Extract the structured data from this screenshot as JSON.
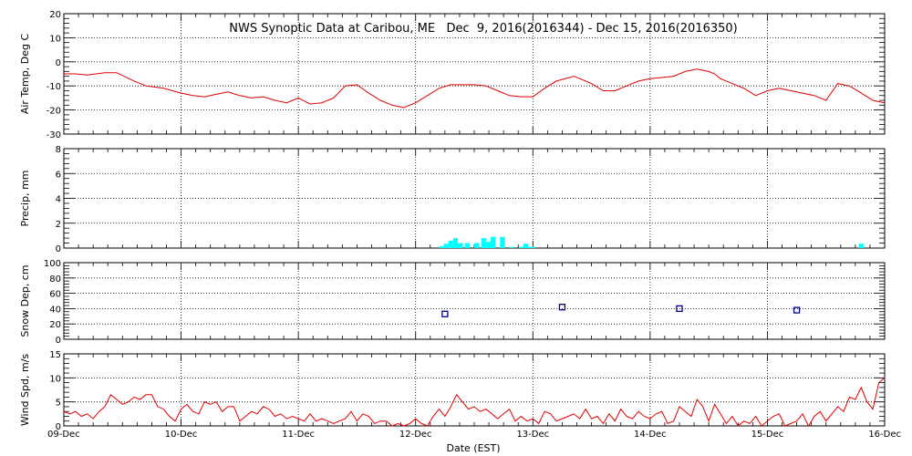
{
  "chart_data": {
    "type": "line",
    "title": "NWS Synoptic Data at Caribou, ME   Dec  9, 2016(2016344) - Dec 15, 2016(2016350)",
    "xlabel": "Date (EST)",
    "x_ticks": [
      "09-Dec",
      "10-Dec",
      "11-Dec",
      "12-Dec",
      "13-Dec",
      "14-Dec",
      "15-Dec",
      "16-Dec"
    ],
    "x_range_days": [
      0,
      7
    ],
    "colors": {
      "temp": "#e00000",
      "precip": "#00ffff",
      "snow": "#000080",
      "wind": "#e00000"
    },
    "panels": [
      {
        "id": "temp",
        "type": "line",
        "ylabel": "Air Temp, Deg C",
        "ylim": [
          -30,
          20
        ],
        "y_ticks": [
          20,
          10,
          0,
          -10,
          -20,
          -30
        ],
        "x": [
          0,
          0.1,
          0.2,
          0.35,
          0.45,
          0.6,
          0.7,
          0.85,
          1.0,
          1.1,
          1.2,
          1.3,
          1.4,
          1.5,
          1.6,
          1.7,
          1.8,
          1.9,
          2.0,
          2.1,
          2.2,
          2.3,
          2.4,
          2.5,
          2.6,
          2.7,
          2.8,
          2.9,
          3.0,
          3.1,
          3.2,
          3.3,
          3.4,
          3.5,
          3.6,
          3.7,
          3.8,
          3.9,
          4.0,
          4.1,
          4.2,
          4.35,
          4.5,
          4.6,
          4.7,
          4.8,
          4.9,
          5.0,
          5.1,
          5.2,
          5.3,
          5.4,
          5.5,
          5.55,
          5.6,
          5.7,
          5.8,
          5.9,
          6.0,
          6.1,
          6.2,
          6.3,
          6.4,
          6.5,
          6.6,
          6.7,
          6.8,
          6.9,
          7.0
        ],
        "values": [
          -5,
          -5,
          -5.5,
          -4.5,
          -4.5,
          -8,
          -10,
          -11,
          -13,
          -14,
          -14.5,
          -13.5,
          -12.5,
          -14,
          -15,
          -14.5,
          -16,
          -17,
          -15,
          -17.5,
          -17,
          -15,
          -10,
          -9.5,
          -13,
          -16,
          -18,
          -19,
          -17,
          -14,
          -11,
          -9.5,
          -9.5,
          -9.5,
          -10,
          -12,
          -14,
          -14.5,
          -14.5,
          -11,
          -8,
          -6,
          -9,
          -12,
          -12,
          -10,
          -8,
          -7,
          -6.5,
          -6,
          -4,
          -3,
          -4,
          -5,
          -7,
          -9,
          -11,
          -14,
          -12,
          -11,
          -12,
          -13,
          -14,
          -16,
          -9,
          -10,
          -13,
          -16,
          -17
        ]
      },
      {
        "id": "precip",
        "type": "bar",
        "ylabel": "Precip, mm",
        "ylim": [
          0,
          8
        ],
        "y_ticks": [
          0,
          2,
          4,
          6,
          8
        ],
        "bars": [
          {
            "x": 3.2,
            "v": 0.15
          },
          {
            "x": 3.24,
            "v": 0.35
          },
          {
            "x": 3.28,
            "v": 0.6
          },
          {
            "x": 3.32,
            "v": 0.8
          },
          {
            "x": 3.36,
            "v": 0.4
          },
          {
            "x": 3.42,
            "v": 0.4
          },
          {
            "x": 3.5,
            "v": 0.4
          },
          {
            "x": 3.56,
            "v": 0.8
          },
          {
            "x": 3.6,
            "v": 0.5
          },
          {
            "x": 3.64,
            "v": 0.9
          },
          {
            "x": 3.72,
            "v": 0.9
          },
          {
            "x": 3.8,
            "v": 0.1
          },
          {
            "x": 3.88,
            "v": 0.1
          },
          {
            "x": 3.92,
            "v": 0.35
          },
          {
            "x": 3.96,
            "v": 0.1
          },
          {
            "x": 3.98,
            "v": 0.1
          },
          {
            "x": 6.78,
            "v": 0.35
          }
        ],
        "bar_width_days": 0.04
      },
      {
        "id": "snow",
        "type": "scatter",
        "ylabel": "Snow Dep, cm",
        "ylim": [
          0,
          100
        ],
        "y_ticks": [
          0,
          20,
          40,
          60,
          80,
          100
        ],
        "points": [
          {
            "x": 3.25,
            "y": 33
          },
          {
            "x": 4.25,
            "y": 42
          },
          {
            "x": 5.25,
            "y": 40
          },
          {
            "x": 6.25,
            "y": 38
          }
        ]
      },
      {
        "id": "wind",
        "type": "line",
        "ylabel": "Wind Spd, m/s",
        "ylim": [
          0,
          15
        ],
        "y_ticks": [
          0,
          5,
          10,
          15
        ],
        "x": [
          0,
          0.05,
          0.1,
          0.15,
          0.2,
          0.25,
          0.3,
          0.35,
          0.4,
          0.45,
          0.5,
          0.55,
          0.6,
          0.65,
          0.7,
          0.75,
          0.8,
          0.85,
          0.9,
          0.95,
          1.0,
          1.05,
          1.1,
          1.15,
          1.2,
          1.25,
          1.3,
          1.35,
          1.4,
          1.45,
          1.5,
          1.55,
          1.6,
          1.65,
          1.7,
          1.75,
          1.8,
          1.85,
          1.9,
          1.95,
          2.0,
          2.05,
          2.1,
          2.15,
          2.2,
          2.25,
          2.3,
          2.35,
          2.4,
          2.45,
          2.5,
          2.55,
          2.6,
          2.65,
          2.7,
          2.75,
          2.8,
          2.85,
          2.9,
          2.95,
          3.0,
          3.05,
          3.1,
          3.15,
          3.2,
          3.25,
          3.3,
          3.35,
          3.4,
          3.45,
          3.5,
          3.55,
          3.6,
          3.65,
          3.7,
          3.75,
          3.8,
          3.85,
          3.9,
          3.95,
          4.0,
          4.05,
          4.1,
          4.15,
          4.2,
          4.25,
          4.3,
          4.35,
          4.4,
          4.45,
          4.5,
          4.55,
          4.6,
          4.65,
          4.7,
          4.75,
          4.8,
          4.85,
          4.9,
          4.95,
          5.0,
          5.05,
          5.1,
          5.15,
          5.2,
          5.25,
          5.3,
          5.35,
          5.4,
          5.45,
          5.5,
          5.55,
          5.6,
          5.65,
          5.7,
          5.75,
          5.8,
          5.85,
          5.9,
          5.95,
          6.0,
          6.05,
          6.1,
          6.15,
          6.2,
          6.25,
          6.3,
          6.35,
          6.4,
          6.45,
          6.5,
          6.55,
          6.6,
          6.65,
          6.7,
          6.75,
          6.8,
          6.85,
          6.9,
          6.95,
          7.0
        ],
        "values": [
          3,
          2.5,
          3,
          2,
          2.5,
          1.5,
          3,
          4,
          6.5,
          5.5,
          4.5,
          5,
          6,
          5.5,
          6.5,
          6.5,
          4,
          3.5,
          2,
          1,
          3.5,
          4.5,
          3,
          2.5,
          5,
          4.5,
          5,
          3,
          4,
          4,
          1,
          2,
          3,
          2.5,
          4,
          3.5,
          2,
          2.5,
          1.5,
          2,
          1.5,
          1,
          2.5,
          1,
          1.5,
          1,
          0.5,
          1,
          1.5,
          3,
          1,
          2.5,
          2,
          0.5,
          1,
          1,
          0,
          0.5,
          0,
          0.5,
          1.5,
          0.5,
          0,
          2,
          3.5,
          2,
          4,
          6.5,
          5,
          3.5,
          4,
          3,
          3.5,
          2.5,
          1.5,
          2.5,
          3.5,
          1,
          2,
          1,
          1.5,
          0.5,
          3,
          2.5,
          1,
          1.5,
          2,
          2.5,
          1.5,
          3.5,
          1.5,
          2,
          0.5,
          2.5,
          1,
          3.5,
          2,
          1.5,
          3,
          2,
          1.5,
          2.5,
          3,
          0.5,
          1,
          4,
          3,
          2,
          5.5,
          4,
          1,
          4.5,
          2.5,
          0.5,
          2,
          0,
          1,
          0.5,
          2,
          0,
          1,
          2,
          2.5,
          0,
          0.5,
          1,
          2.5,
          0,
          2,
          3,
          1,
          2.5,
          4,
          3,
          6,
          5.5,
          8,
          5,
          3.5,
          9,
          10
        ]
      }
    ]
  }
}
